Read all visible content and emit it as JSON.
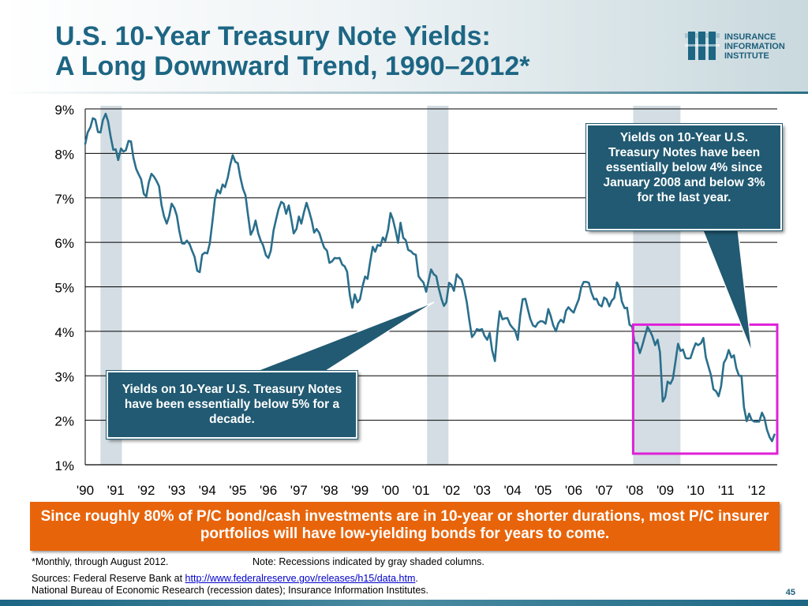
{
  "title": {
    "line1": "U.S. 10-Year Treasury Note Yields:",
    "line2": "A Long Downward Trend, 1990–2012*"
  },
  "logo": {
    "line1": "INSURANCE",
    "line2": "INFORMATION",
    "line3": "INSTITUTE",
    "icon": "iii-logo-icon"
  },
  "callouts": {
    "right": "Yields on 10-Year U.S. Treasury Notes have been essentially below 4% since January 2008 and below 3% for the last year.",
    "left": "Yields on 10-Year U.S. Treasury Notes have been essentially below 5% for a decade."
  },
  "conclusion": "Since roughly 80% of P/C bond/cash investments are in 10-year or shorter durations, most P/C insurer portfolios will have low-yielding bonds for years to come.",
  "footnotes": {
    "monthly": "*Monthly, through August 2012.",
    "note": "Note: Recessions indicated by gray shaded columns.",
    "sources_prefix": "Sources: Federal Reserve Bank at ",
    "sources_link": "http://www.federalreserve.gov/releases/h15/data.htm",
    "sources_suffix": ".",
    "nber": "National Bureau of Economic Research (recession dates); Insurance Information Institutes."
  },
  "page_number": "45",
  "colors": {
    "line": "#2a6f8c",
    "title": "#1d6684",
    "callout_bg": "#215a72",
    "conclusion_bg": "#e8640a",
    "recession": "#d3dde3",
    "highlight_box": "#e020d8"
  },
  "chart_data": {
    "type": "line",
    "title": "",
    "xlabel": "",
    "ylabel": "",
    "ylim": [
      1,
      9
    ],
    "xlim": [
      1990.0,
      2012.67
    ],
    "y_tick_labels": [
      "1%",
      "2%",
      "3%",
      "4%",
      "5%",
      "6%",
      "7%",
      "8%",
      "9%"
    ],
    "x_tick_labels": [
      "'90",
      "'91",
      "'92",
      "'93",
      "'94",
      "'95",
      "'96",
      "'97",
      "'98",
      "'99",
      "'00",
      "'01",
      "'02",
      "'03",
      "'04",
      "'05",
      "'06",
      "'07",
      "'08",
      "'09",
      "'10",
      "'11",
      "'12"
    ],
    "grid": "horizontal",
    "recessions": [
      [
        1990.5,
        1991.2
      ],
      [
        2001.2,
        2001.9
      ],
      [
        2007.95,
        2009.5
      ]
    ],
    "highlight_range": {
      "x": [
        2007.95,
        2012.67
      ],
      "y": [
        1.25,
        4.15
      ]
    },
    "series": [
      {
        "x": [
          1990.0,
          1990.08,
          1990.17,
          1990.25,
          1990.33,
          1990.42,
          1990.5,
          1990.58,
          1990.67,
          1990.75,
          1990.83,
          1990.92,
          1991.0,
          1991.08,
          1991.17,
          1991.25,
          1991.33,
          1991.42,
          1991.5,
          1991.58,
          1991.67,
          1991.75,
          1991.83,
          1991.92,
          1992.0,
          1992.08,
          1992.17,
          1992.25,
          1992.33,
          1992.42,
          1992.5,
          1992.58,
          1992.67,
          1992.75,
          1992.83,
          1992.92,
          1993.0,
          1993.08,
          1993.17,
          1993.25,
          1993.33,
          1993.42,
          1993.5,
          1993.58,
          1993.67,
          1993.75,
          1993.83,
          1993.92,
          1994.0,
          1994.08,
          1994.17,
          1994.25,
          1994.33,
          1994.42,
          1994.5,
          1994.58,
          1994.67,
          1994.75,
          1994.83,
          1994.92,
          1995.0,
          1995.08,
          1995.17,
          1995.25,
          1995.33,
          1995.42,
          1995.5,
          1995.58,
          1995.67,
          1995.75,
          1995.83,
          1995.92,
          1996.0,
          1996.08,
          1996.17,
          1996.25,
          1996.33,
          1996.42,
          1996.5,
          1996.58,
          1996.67,
          1996.75,
          1996.83,
          1996.92,
          1997.0,
          1997.08,
          1997.17,
          1997.25,
          1997.33,
          1997.42,
          1997.5,
          1997.58,
          1997.67,
          1997.75,
          1997.83,
          1997.92,
          1998.0,
          1998.08,
          1998.17,
          1998.25,
          1998.33,
          1998.42,
          1998.5,
          1998.58,
          1998.67,
          1998.75,
          1998.83,
          1998.92,
          1999.0,
          1999.08,
          1999.17,
          1999.25,
          1999.33,
          1999.42,
          1999.5,
          1999.58,
          1999.67,
          1999.75,
          1999.83,
          1999.92,
          2000.0,
          2000.08,
          2000.17,
          2000.25,
          2000.33,
          2000.42,
          2000.5,
          2000.58,
          2000.67,
          2000.75,
          2000.83,
          2000.92,
          2001.0,
          2001.08,
          2001.17,
          2001.25,
          2001.33,
          2001.42,
          2001.5,
          2001.58,
          2001.67,
          2001.75,
          2001.83,
          2001.92,
          2002.0,
          2002.08,
          2002.17,
          2002.25,
          2002.33,
          2002.42,
          2002.5,
          2002.58,
          2002.67,
          2002.75,
          2002.83,
          2002.92,
          2003.0,
          2003.08,
          2003.17,
          2003.25,
          2003.33,
          2003.42,
          2003.5,
          2003.58,
          2003.67,
          2003.75,
          2003.83,
          2003.92,
          2004.0,
          2004.08,
          2004.17,
          2004.25,
          2004.33,
          2004.42,
          2004.5,
          2004.58,
          2004.67,
          2004.75,
          2004.83,
          2004.92,
          2005.0,
          2005.08,
          2005.17,
          2005.25,
          2005.33,
          2005.42,
          2005.5,
          2005.58,
          2005.67,
          2005.75,
          2005.83,
          2005.92,
          2006.0,
          2006.08,
          2006.17,
          2006.25,
          2006.33,
          2006.42,
          2006.5,
          2006.58,
          2006.67,
          2006.75,
          2006.83,
          2006.92,
          2007.0,
          2007.08,
          2007.17,
          2007.25,
          2007.33,
          2007.42,
          2007.5,
          2007.58,
          2007.67,
          2007.75,
          2007.83,
          2007.92,
          2008.0,
          2008.08,
          2008.17,
          2008.25,
          2008.33,
          2008.42,
          2008.5,
          2008.58,
          2008.67,
          2008.75,
          2008.83,
          2008.92,
          2009.0,
          2009.08,
          2009.17,
          2009.25,
          2009.33,
          2009.42,
          2009.5,
          2009.58,
          2009.67,
          2009.75,
          2009.83,
          2009.92,
          2010.0,
          2010.08,
          2010.17,
          2010.25,
          2010.33,
          2010.42,
          2010.5,
          2010.58,
          2010.67,
          2010.75,
          2010.83,
          2010.92,
          2011.0,
          2011.08,
          2011.17,
          2011.25,
          2011.33,
          2011.42,
          2011.5,
          2011.58,
          2011.67,
          2011.75,
          2011.83,
          2011.92,
          2012.0,
          2012.08,
          2012.17,
          2012.25,
          2012.33,
          2012.42,
          2012.5,
          2012.58
        ],
        "values": [
          8.21,
          8.47,
          8.59,
          8.79,
          8.76,
          8.48,
          8.47,
          8.75,
          8.89,
          8.72,
          8.39,
          8.08,
          8.09,
          7.85,
          8.11,
          8.04,
          8.07,
          8.28,
          8.27,
          7.9,
          7.65,
          7.53,
          7.42,
          7.09,
          7.03,
          7.34,
          7.54,
          7.48,
          7.39,
          7.26,
          6.84,
          6.59,
          6.42,
          6.59,
          6.87,
          6.77,
          6.6,
          6.26,
          5.98,
          5.97,
          6.04,
          5.96,
          5.81,
          5.68,
          5.36,
          5.33,
          5.72,
          5.77,
          5.75,
          5.97,
          6.48,
          6.97,
          7.18,
          7.1,
          7.3,
          7.24,
          7.46,
          7.74,
          7.96,
          7.81,
          7.78,
          7.47,
          7.2,
          7.06,
          6.63,
          6.17,
          6.28,
          6.49,
          6.2,
          6.04,
          5.93,
          5.71,
          5.65,
          5.81,
          6.27,
          6.51,
          6.74,
          6.91,
          6.87,
          6.64,
          6.83,
          6.53,
          6.2,
          6.3,
          6.58,
          6.42,
          6.69,
          6.89,
          6.71,
          6.49,
          6.22,
          6.3,
          6.21,
          6.03,
          5.88,
          5.81,
          5.54,
          5.57,
          5.65,
          5.64,
          5.65,
          5.5,
          5.46,
          5.34,
          4.81,
          4.53,
          4.83,
          4.65,
          4.72,
          5.0,
          5.23,
          5.18,
          5.54,
          5.9,
          5.79,
          5.94,
          5.92,
          6.11,
          6.03,
          6.28,
          6.66,
          6.52,
          6.26,
          5.99,
          6.44,
          6.1,
          6.05,
          5.83,
          5.8,
          5.74,
          5.72,
          5.24,
          5.16,
          5.1,
          4.89,
          5.14,
          5.39,
          5.28,
          5.24,
          4.97,
          4.73,
          4.57,
          4.65,
          5.09,
          5.04,
          4.91,
          5.28,
          5.21,
          5.16,
          4.93,
          4.65,
          4.26,
          3.87,
          3.94,
          4.05,
          4.03,
          4.05,
          3.9,
          3.81,
          3.96,
          3.57,
          3.33,
          3.98,
          4.45,
          4.27,
          4.29,
          4.3,
          4.15,
          4.08,
          4.02,
          3.81,
          4.35,
          4.72,
          4.73,
          4.5,
          4.28,
          4.13,
          4.1,
          4.19,
          4.23,
          4.22,
          4.17,
          4.5,
          4.34,
          4.14,
          4.0,
          4.18,
          4.26,
          4.2,
          4.46,
          4.54,
          4.47,
          4.42,
          4.57,
          4.72,
          4.99,
          5.11,
          5.11,
          5.09,
          4.88,
          4.72,
          4.73,
          4.6,
          4.56,
          4.76,
          4.72,
          4.56,
          4.69,
          4.75,
          5.1,
          5.0,
          4.67,
          4.52,
          4.53,
          4.15,
          4.1,
          3.74,
          3.74,
          3.51,
          3.68,
          3.88,
          4.1,
          4.01,
          3.89,
          3.69,
          3.81,
          3.53,
          2.42,
          2.52,
          2.87,
          2.82,
          2.93,
          3.29,
          3.72,
          3.56,
          3.59,
          3.4,
          3.39,
          3.4,
          3.59,
          3.73,
          3.69,
          3.73,
          3.85,
          3.42,
          3.2,
          3.01,
          2.7,
          2.65,
          2.54,
          2.76,
          3.29,
          3.39,
          3.58,
          3.41,
          3.46,
          3.17,
          3.0,
          3.0,
          2.3,
          1.98,
          2.15,
          2.01,
          1.97,
          1.97,
          1.97,
          2.17,
          2.05,
          1.8,
          1.62,
          1.53,
          1.68
        ]
      }
    ]
  }
}
